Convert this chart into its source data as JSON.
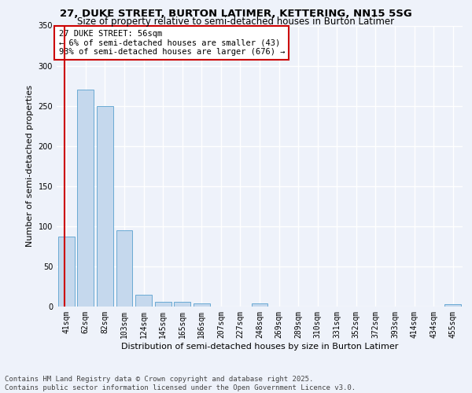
{
  "title_line1": "27, DUKE STREET, BURTON LATIMER, KETTERING, NN15 5SG",
  "title_line2": "Size of property relative to semi-detached houses in Burton Latimer",
  "xlabel": "Distribution of semi-detached houses by size in Burton Latimer",
  "ylabel": "Number of semi-detached properties",
  "categories": [
    "41sqm",
    "62sqm",
    "82sqm",
    "103sqm",
    "124sqm",
    "145sqm",
    "165sqm",
    "186sqm",
    "207sqm",
    "227sqm",
    "248sqm",
    "269sqm",
    "289sqm",
    "310sqm",
    "331sqm",
    "352sqm",
    "372sqm",
    "393sqm",
    "414sqm",
    "434sqm",
    "455sqm"
  ],
  "values": [
    87,
    270,
    250,
    95,
    15,
    6,
    6,
    4,
    0,
    0,
    4,
    0,
    0,
    0,
    0,
    0,
    0,
    0,
    0,
    0,
    3
  ],
  "bar_color": "#c5d8ed",
  "bar_edge_color": "#6aaad4",
  "vline_color": "#cc0000",
  "annotation_text": "27 DUKE STREET: 56sqm\n← 6% of semi-detached houses are smaller (43)\n93% of semi-detached houses are larger (676) →",
  "annotation_box_color": "#ffffff",
  "annotation_box_edge": "#cc0000",
  "ylim": [
    0,
    350
  ],
  "yticks": [
    0,
    50,
    100,
    150,
    200,
    250,
    300,
    350
  ],
  "footer_line1": "Contains HM Land Registry data © Crown copyright and database right 2025.",
  "footer_line2": "Contains public sector information licensed under the Open Government Licence v3.0.",
  "background_color": "#eef2fa",
  "grid_color": "#ffffff",
  "title1_fontsize": 9.5,
  "title2_fontsize": 8.5,
  "axis_label_fontsize": 8,
  "tick_fontsize": 7,
  "annotation_fontsize": 7.5,
  "footer_fontsize": 6.5
}
